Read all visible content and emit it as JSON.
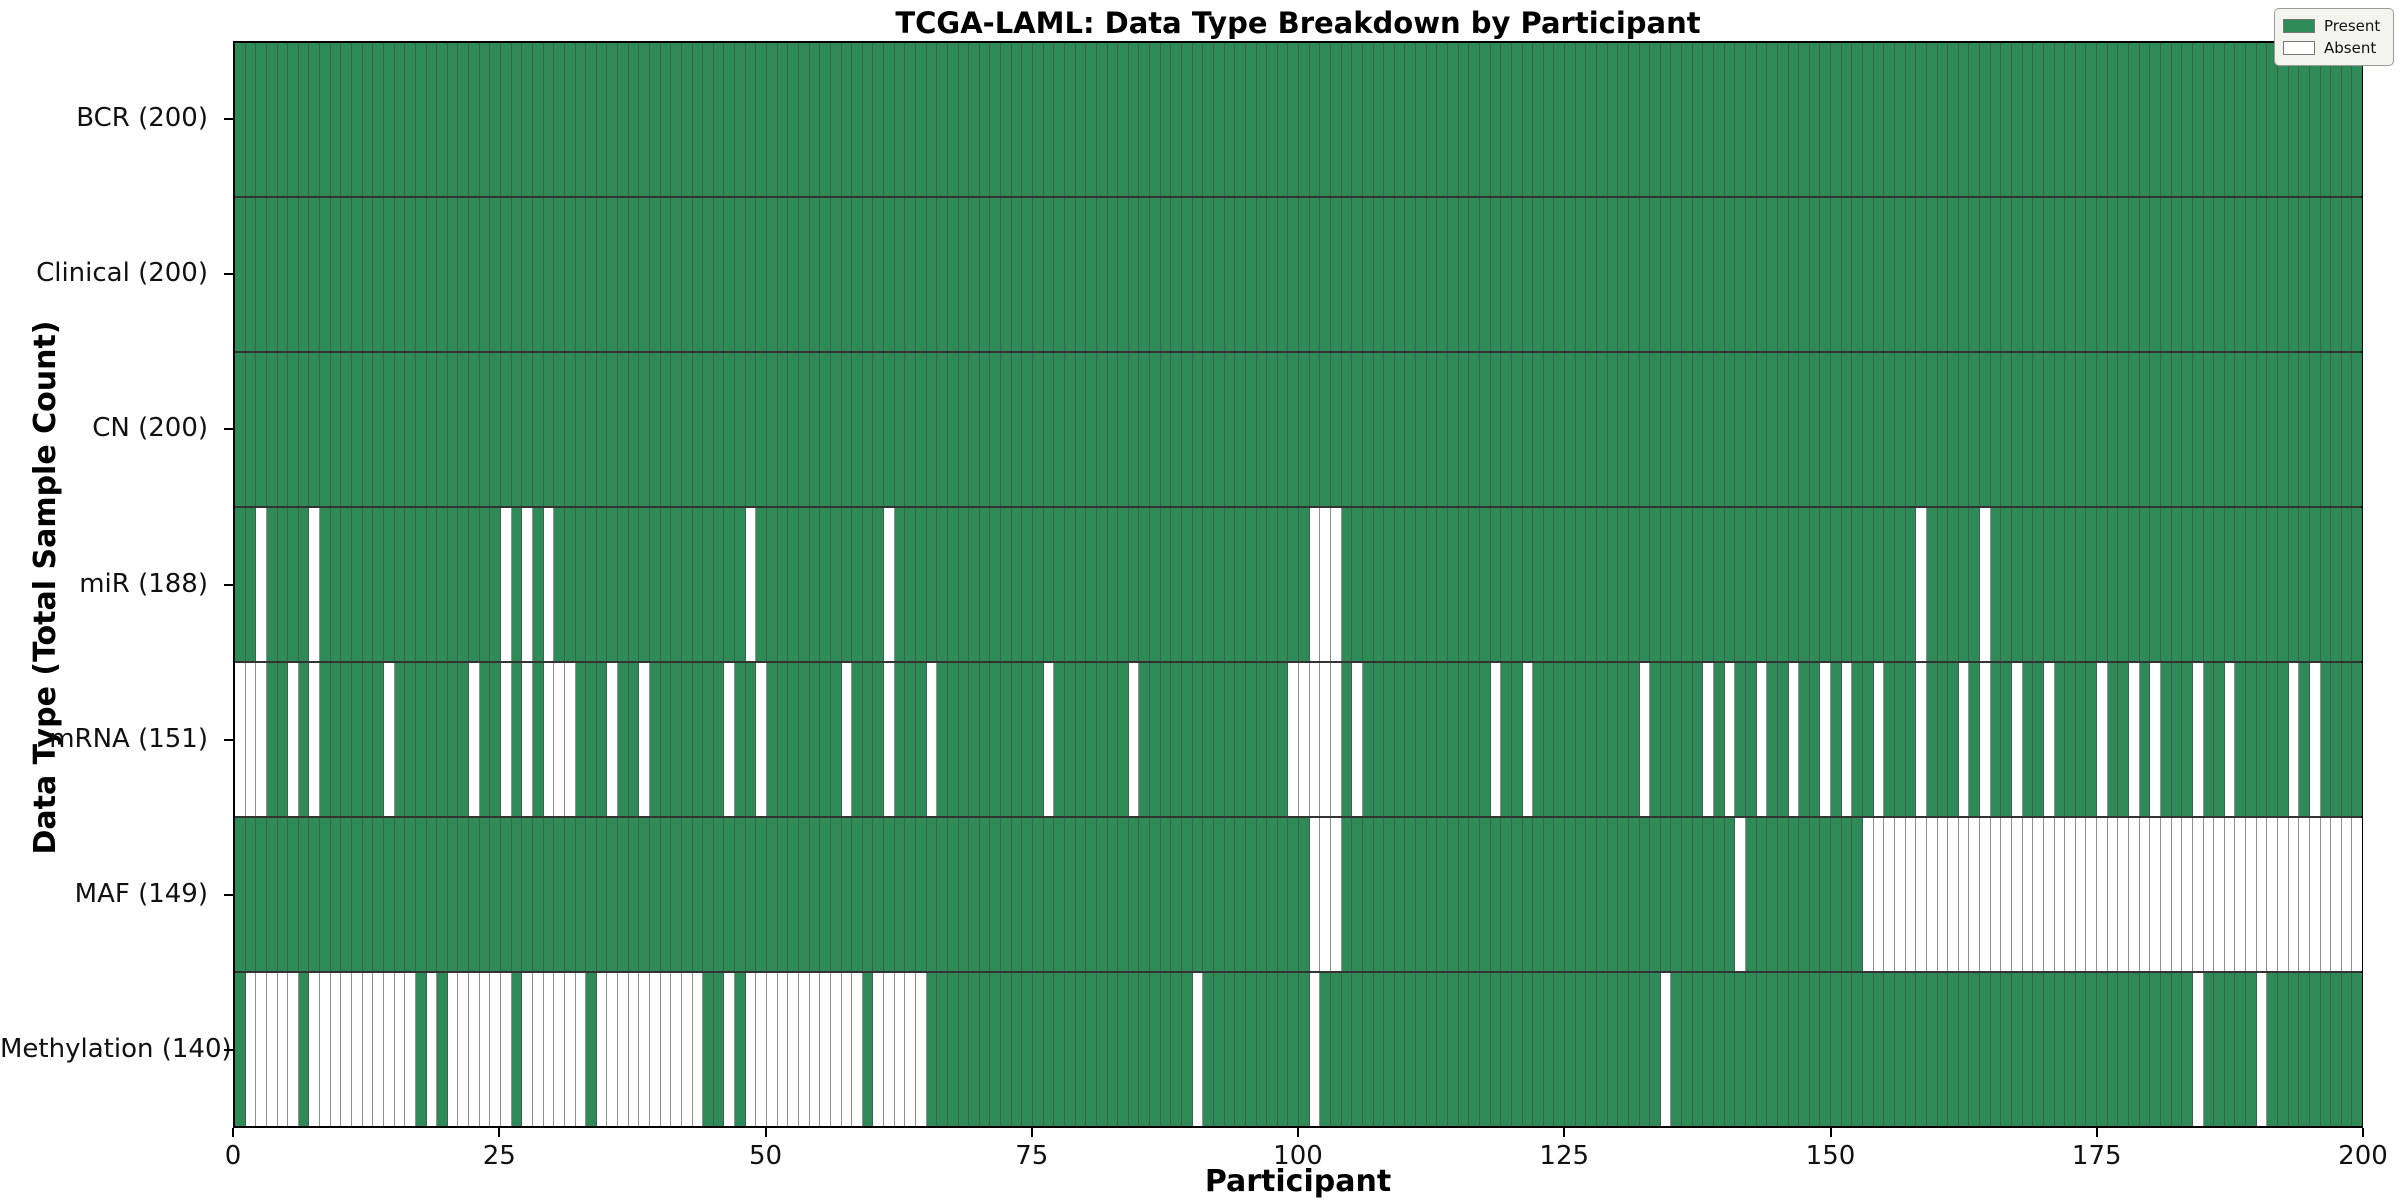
{
  "title": "TCGA-LAML: Data Type Breakdown by Participant",
  "x_axis": {
    "label": "Participant",
    "ticks": [
      0,
      25,
      50,
      75,
      100,
      125,
      150,
      175,
      200
    ]
  },
  "y_axis": {
    "label": "Data Type (Total Sample Count)"
  },
  "legend": {
    "present_label": "Present",
    "absent_label": "Absent"
  },
  "colors": {
    "present": "#2e8b57",
    "absent": "#ffffff"
  },
  "chart_data": {
    "type": "heatmap",
    "n_participants": 200,
    "x_range": [
      0,
      200
    ],
    "grid": true,
    "legend_position": "upper right",
    "rows": [
      {
        "label": "BCR (200)",
        "total": 200,
        "absent": []
      },
      {
        "label": "Clinical (200)",
        "total": 200,
        "absent": []
      },
      {
        "label": "CN (200)",
        "total": 200,
        "absent": []
      },
      {
        "label": "miR (188)",
        "total": 188,
        "absent": [
          2,
          7,
          25,
          27,
          29,
          48,
          61,
          101,
          102,
          103,
          158,
          164
        ]
      },
      {
        "label": "mRNA (151)",
        "total": 151,
        "absent": [
          0,
          1,
          2,
          5,
          7,
          14,
          22,
          25,
          27,
          29,
          30,
          31,
          35,
          38,
          46,
          49,
          57,
          61,
          65,
          76,
          84,
          99,
          100,
          101,
          102,
          103,
          105,
          118,
          121,
          132,
          138,
          140,
          143,
          146,
          149,
          151,
          154,
          158,
          162,
          164,
          167,
          170,
          175,
          178,
          180,
          184,
          187,
          193,
          195
        ]
      },
      {
        "label": "MAF (149)",
        "total": 149,
        "absent": [
          101,
          102,
          103,
          141,
          153,
          154,
          155,
          156,
          157,
          158,
          159,
          160,
          161,
          162,
          163,
          164,
          165,
          166,
          167,
          168,
          169,
          170,
          171,
          172,
          173,
          174,
          175,
          176,
          177,
          178,
          179,
          180,
          181,
          182,
          183,
          184,
          185,
          186,
          187,
          188,
          189,
          190,
          191,
          192,
          193,
          194,
          195,
          196,
          197,
          198,
          199
        ]
      },
      {
        "label": "Methylation (140)",
        "total": 140,
        "absent": [
          1,
          2,
          3,
          4,
          5,
          7,
          8,
          9,
          10,
          11,
          12,
          13,
          14,
          15,
          16,
          18,
          20,
          21,
          22,
          23,
          24,
          25,
          27,
          28,
          29,
          30,
          31,
          32,
          34,
          35,
          36,
          37,
          38,
          39,
          40,
          41,
          42,
          43,
          46,
          48,
          49,
          50,
          51,
          52,
          53,
          54,
          55,
          56,
          57,
          58,
          60,
          61,
          62,
          63,
          64,
          90,
          101,
          134,
          184,
          190
        ]
      }
    ]
  }
}
